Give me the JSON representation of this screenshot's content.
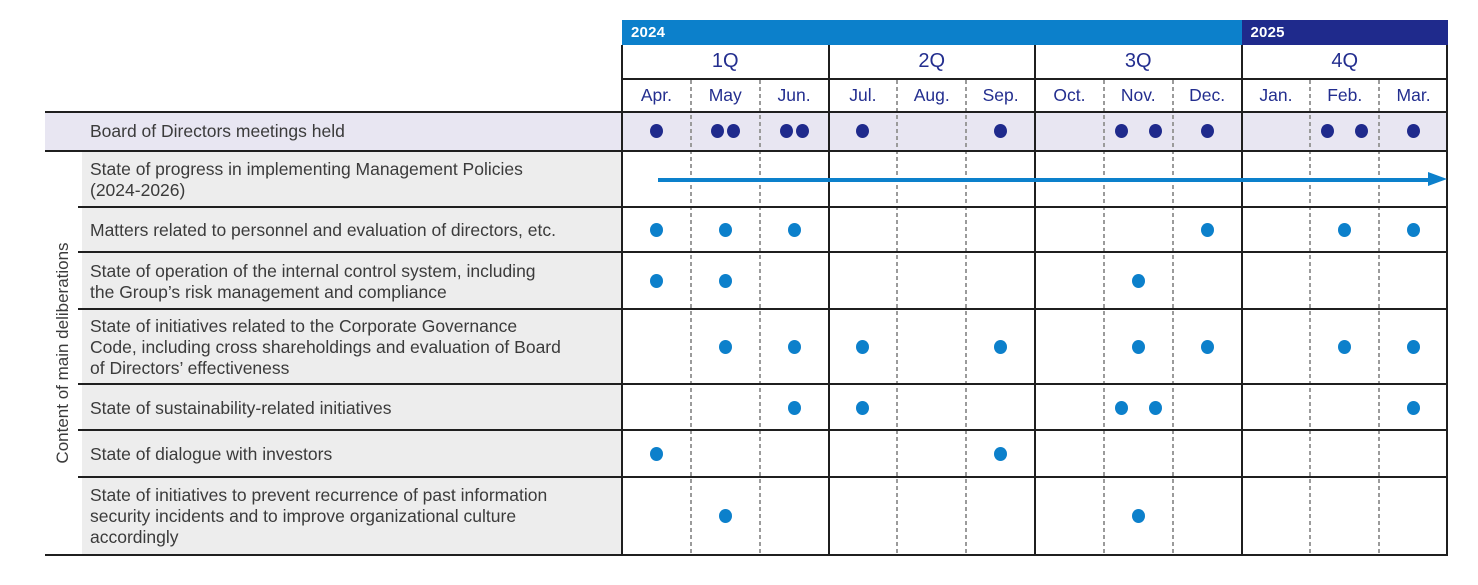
{
  "colors": {
    "bright_blue": "#0c80cb",
    "dark_navy": "#1f2a8c",
    "month_text": "#232e8f",
    "row_highlight_bg": "#e8e6f2",
    "label_bg": "#ededed",
    "label_text": "#3b3b3b",
    "grid_line": "#1f1f1f",
    "dashed_line": "#9b9b9b",
    "white": "#ffffff"
  },
  "left_axis_label": "Content of main deliberations",
  "timeline": {
    "years": [
      {
        "label": "2024",
        "start_month_index": 0,
        "month_span": 9
      },
      {
        "label": "2025",
        "start_month_index": 9,
        "month_span": 3
      }
    ],
    "quarters": [
      {
        "label": "1Q",
        "start_month_index": 0,
        "month_span": 3
      },
      {
        "label": "2Q",
        "start_month_index": 3,
        "month_span": 3
      },
      {
        "label": "3Q",
        "start_month_index": 6,
        "month_span": 3
      },
      {
        "label": "4Q",
        "start_month_index": 9,
        "month_span": 3
      }
    ],
    "months": [
      "Apr.",
      "May",
      "Jun.",
      "Jul.",
      "Aug.",
      "Sep.",
      "Oct.",
      "Nov.",
      "Dec.",
      "Jan.",
      "Feb.",
      "Mar."
    ]
  },
  "rows": [
    {
      "id": "board-meetings",
      "label": "Board of Directors meetings held",
      "label_lines": [
        "Board of Directors meetings held"
      ],
      "highlight": true,
      "dot_color": "dark_navy",
      "dots": [
        1,
        "2a",
        "2a",
        1,
        0,
        1,
        0,
        "2s",
        1,
        0,
        "2s",
        1
      ]
    },
    {
      "id": "management-policies-progress",
      "label": "State of progress in implementing Management Policies (2024-2026)",
      "label_lines": [
        "State of progress in implementing Management Policies",
        "(2024-2026)"
      ],
      "annotation": "continuous-arrow",
      "dot_color": "bright_blue",
      "dots": [
        0,
        0,
        0,
        0,
        0,
        0,
        0,
        0,
        0,
        0,
        0,
        0
      ]
    },
    {
      "id": "personnel-evaluation",
      "label": "Matters related to personnel and evaluation of directors, etc.",
      "label_lines": [
        "Matters related to personnel and evaluation of directors, etc."
      ],
      "dot_color": "bright_blue",
      "dots": [
        1,
        1,
        1,
        0,
        0,
        0,
        0,
        0,
        1,
        0,
        1,
        1
      ]
    },
    {
      "id": "internal-control",
      "label": "State of operation of the internal control system, including the Group’s risk management and compliance",
      "label_lines": [
        "State of operation of the internal control system, including",
        "the Group’s risk management and compliance"
      ],
      "dot_color": "bright_blue",
      "dots": [
        1,
        1,
        0,
        0,
        0,
        0,
        0,
        1,
        0,
        0,
        0,
        0
      ]
    },
    {
      "id": "governance-code",
      "label": "State of initiatives related to the Corporate Governance Code, including cross shareholdings and evaluation of Board of Directors’ effectiveness",
      "label_lines": [
        "State of initiatives related to the Corporate Governance",
        "Code, including cross shareholdings and evaluation of Board",
        "of Directors’ effectiveness"
      ],
      "dot_color": "bright_blue",
      "dots": [
        0,
        1,
        1,
        1,
        0,
        1,
        0,
        1,
        1,
        0,
        1,
        1
      ]
    },
    {
      "id": "sustainability",
      "label": "State of sustainability-related initiatives",
      "label_lines": [
        "State of sustainability-related initiatives"
      ],
      "dot_color": "bright_blue",
      "dots": [
        0,
        0,
        1,
        1,
        0,
        0,
        0,
        "2s",
        0,
        0,
        0,
        1
      ]
    },
    {
      "id": "investor-dialogue",
      "label": "State of dialogue with investors",
      "label_lines": [
        "State of dialogue with investors"
      ],
      "dot_color": "bright_blue",
      "dots": [
        1,
        0,
        0,
        0,
        0,
        1,
        0,
        0,
        0,
        0,
        0,
        0
      ]
    },
    {
      "id": "info-security",
      "label": "State of initiatives to prevent recurrence of past information security incidents and to improve organizational culture accordingly",
      "label_lines": [
        "State of initiatives to prevent recurrence of past information",
        "security incidents and to improve organizational culture",
        "accordingly"
      ],
      "dot_color": "bright_blue",
      "dots": [
        0,
        1,
        0,
        0,
        0,
        0,
        0,
        1,
        0,
        0,
        0,
        0
      ]
    }
  ],
  "chart_data": {
    "type": "table",
    "title": "Board of Directors meetings held and content of main deliberations (April 2024 - March 2025)",
    "x_months": [
      "Apr.",
      "May",
      "Jun.",
      "Jul.",
      "Aug.",
      "Sep.",
      "Oct.",
      "Nov.",
      "Dec.",
      "Jan.",
      "Feb.",
      "Mar."
    ],
    "x_quarters": [
      {
        "label": "1Q",
        "months": [
          "Apr.",
          "May",
          "Jun."
        ]
      },
      {
        "label": "2Q",
        "months": [
          "Jul.",
          "Aug.",
          "Sep."
        ]
      },
      {
        "label": "3Q",
        "months": [
          "Oct.",
          "Nov.",
          "Dec."
        ]
      },
      {
        "label": "4Q",
        "months": [
          "Jan.",
          "Feb.",
          "Mar."
        ]
      }
    ],
    "x_years": [
      {
        "label": "2024",
        "months": [
          "Apr.",
          "May",
          "Jun.",
          "Jul.",
          "Aug.",
          "Sep.",
          "Oct.",
          "Nov.",
          "Dec."
        ]
      },
      {
        "label": "2025",
        "months": [
          "Jan.",
          "Feb.",
          "Mar."
        ]
      }
    ],
    "group_label": "Content of main deliberations",
    "series": [
      {
        "name": "Board of Directors meetings held",
        "counts_per_month": [
          1,
          2,
          2,
          1,
          0,
          1,
          0,
          2,
          1,
          0,
          2,
          1
        ],
        "marker": "dark-navy-dot"
      },
      {
        "name": "State of progress in implementing Management Policies (2024-2026)",
        "counts_per_month": [
          0,
          0,
          0,
          0,
          0,
          0,
          0,
          0,
          0,
          0,
          0,
          0
        ],
        "annotation": "continuous blue arrow spanning Apr. 2024 through Mar. 2025"
      },
      {
        "name": "Matters related to personnel and evaluation of directors, etc.",
        "counts_per_month": [
          1,
          1,
          1,
          0,
          0,
          0,
          0,
          0,
          1,
          0,
          1,
          1
        ],
        "marker": "blue-dot"
      },
      {
        "name": "State of operation of the internal control system, including the Group’s risk management and compliance",
        "counts_per_month": [
          1,
          1,
          0,
          0,
          0,
          0,
          0,
          1,
          0,
          0,
          0,
          0
        ],
        "marker": "blue-dot"
      },
      {
        "name": "State of initiatives related to the Corporate Governance Code, including cross shareholdings and evaluation of Board of Directors’ effectiveness",
        "counts_per_month": [
          0,
          1,
          1,
          1,
          0,
          1,
          0,
          1,
          1,
          0,
          1,
          1
        ],
        "marker": "blue-dot"
      },
      {
        "name": "State of sustainability-related initiatives",
        "counts_per_month": [
          0,
          0,
          1,
          1,
          0,
          0,
          0,
          2,
          0,
          0,
          0,
          1
        ],
        "marker": "blue-dot"
      },
      {
        "name": "State of dialogue with investors",
        "counts_per_month": [
          1,
          0,
          0,
          0,
          0,
          1,
          0,
          0,
          0,
          0,
          0,
          0
        ],
        "marker": "blue-dot"
      },
      {
        "name": "State of initiatives to prevent recurrence of past information security incidents and to improve organizational culture accordingly",
        "counts_per_month": [
          0,
          1,
          0,
          0,
          0,
          0,
          0,
          1,
          0,
          0,
          0,
          0
        ],
        "marker": "blue-dot"
      }
    ]
  }
}
